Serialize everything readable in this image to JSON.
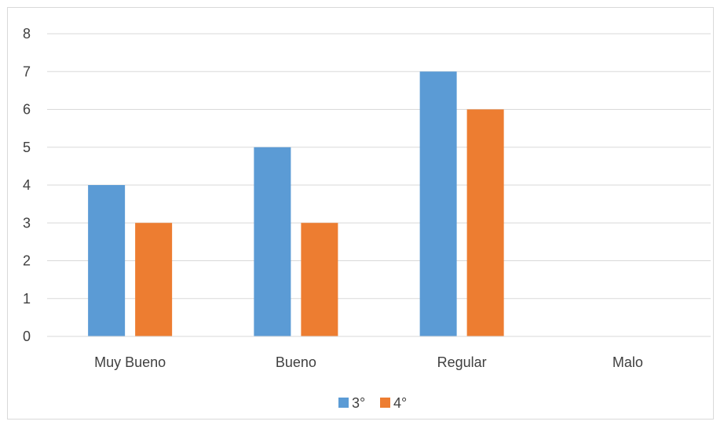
{
  "chart_data": {
    "type": "bar",
    "title": "",
    "xlabel": "",
    "ylabel": "",
    "categories": [
      "Muy Bueno",
      "Bueno",
      "Regular",
      "Malo"
    ],
    "series": [
      {
        "name": "3°",
        "values": [
          4,
          5,
          7,
          0
        ],
        "color": "#5b9bd5"
      },
      {
        "name": "4°",
        "values": [
          3,
          3,
          6,
          0
        ],
        "color": "#ed7d31"
      }
    ],
    "ylim": [
      0,
      8
    ],
    "yticks": [
      0,
      1,
      2,
      3,
      4,
      5,
      6,
      7,
      8
    ],
    "grid": true,
    "gridline_color": "#d9d9d9",
    "legend_position": "bottom"
  }
}
